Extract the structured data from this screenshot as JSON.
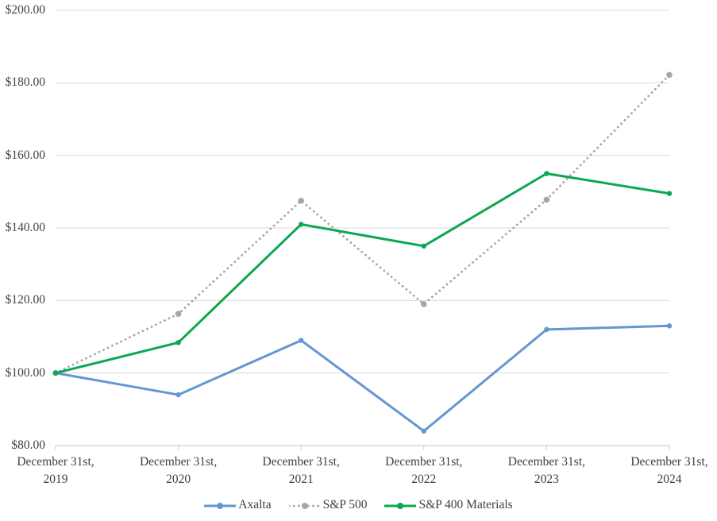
{
  "chart_data": {
    "type": "line",
    "title": "",
    "x_axis": {
      "categories": [
        {
          "line1": "December 31st,",
          "line2": "2019"
        },
        {
          "line1": "December 31st,",
          "line2": "2020"
        },
        {
          "line1": "December 31st,",
          "line2": "2021"
        },
        {
          "line1": "December 31st,",
          "line2": "2022"
        },
        {
          "line1": "December 31st,",
          "line2": "2023"
        },
        {
          "line1": "December 31st,",
          "line2": "2024"
        }
      ]
    },
    "y_axis": {
      "min": 80,
      "max": 200,
      "step": 20,
      "tick_labels": [
        "$80.00",
        "$100.00",
        "$120.00",
        "$140.00",
        "$160.00",
        "$180.00",
        "$200.00"
      ]
    },
    "series": [
      {
        "name": "Axalta",
        "color": "#6496D2",
        "line_style": "solid",
        "marker": "circle",
        "values": [
          100,
          94,
          109,
          84,
          112,
          113
        ]
      },
      {
        "name": "S&P 500",
        "color": "#A6A6A6",
        "line_style": "dotted",
        "marker": "circle",
        "values": [
          100,
          116.3,
          147.5,
          119,
          147.8,
          182.2
        ]
      },
      {
        "name": "S&P 400 Materials",
        "color": "#0CA750",
        "line_style": "solid",
        "marker": "circle",
        "values": [
          100,
          108.4,
          141,
          135,
          155,
          149.5
        ]
      }
    ],
    "legend": {
      "position": "bottom"
    },
    "grid": true,
    "colors": {
      "gridline": "#D9D9D9",
      "axis_line": "#C4C4C4",
      "tick_text": "#404040",
      "background": "#FFFFFF"
    }
  }
}
